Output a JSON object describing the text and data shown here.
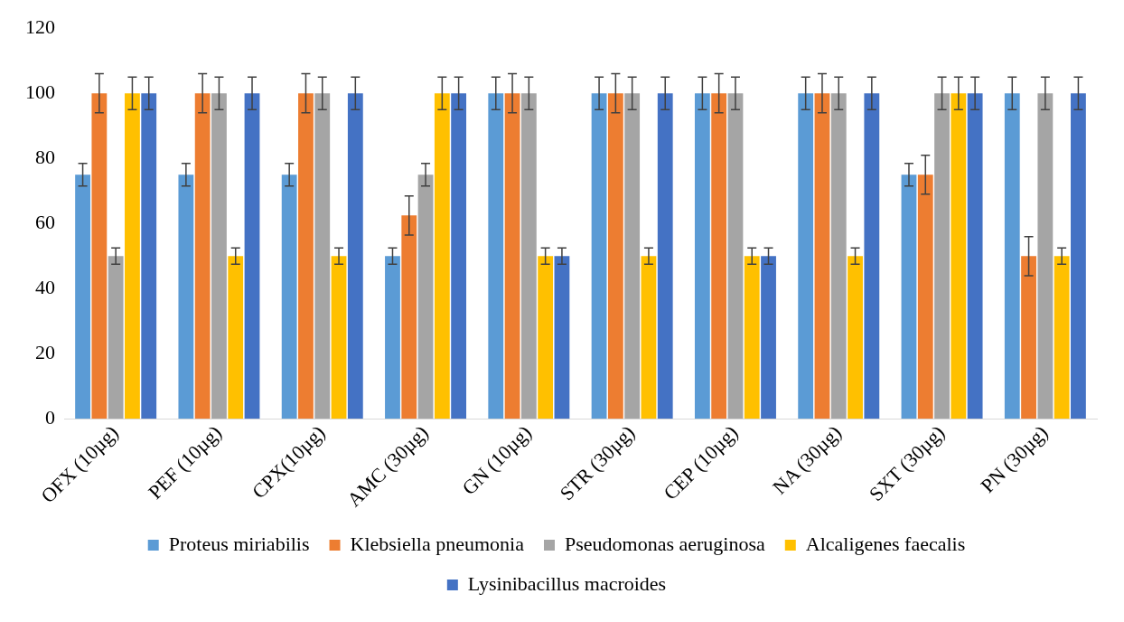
{
  "chart_data": {
    "type": "bar",
    "categories": [
      "OFX (10µg)",
      "PEF (10µg)",
      "CPX(10µg)",
      "AMC (30µg)",
      "GN (10µg)",
      "STR (30µg)",
      "CEP (10µg)",
      "NA (30µg)",
      "SXT (30µg)",
      "PN (30µg)"
    ],
    "series": [
      {
        "name": "Proteus miriabilis",
        "color": "#5b9bd5",
        "values": [
          75,
          75,
          75,
          50,
          100,
          100,
          100,
          100,
          75,
          100
        ],
        "errors": [
          3.5,
          3.5,
          3.5,
          2.5,
          5,
          5,
          5,
          5,
          3.5,
          5
        ]
      },
      {
        "name": "Klebsiella pneumonia",
        "color": "#ed7d31",
        "values": [
          100,
          100,
          100,
          62.5,
          100,
          100,
          100,
          100,
          75,
          50
        ],
        "errors": [
          6,
          6,
          6,
          6,
          6,
          6,
          6,
          6,
          6,
          6
        ]
      },
      {
        "name": "Pseudomonas aeruginosa",
        "color": "#a5a5a5",
        "values": [
          50,
          100,
          100,
          75,
          100,
          100,
          100,
          100,
          100,
          100
        ],
        "errors": [
          2.5,
          5,
          5,
          3.5,
          5,
          5,
          5,
          5,
          5,
          5
        ]
      },
      {
        "name": "Alcaligenes faecalis",
        "color": "#ffc000",
        "values": [
          100,
          50,
          50,
          100,
          50,
          50,
          50,
          50,
          100,
          50
        ],
        "errors": [
          5,
          2.5,
          2.5,
          5,
          2.5,
          2.5,
          2.5,
          2.5,
          5,
          2.5
        ]
      },
      {
        "name": "Lysinibacillus macroides",
        "color": "#4472c4",
        "values": [
          100,
          100,
          100,
          100,
          50,
          100,
          50,
          100,
          100,
          100
        ],
        "errors": [
          5,
          5,
          5,
          5,
          2.5,
          5,
          2.5,
          5,
          5,
          5
        ]
      }
    ],
    "ylim": [
      0,
      120
    ],
    "yticks": [
      0,
      20,
      40,
      60,
      80,
      100,
      120
    ],
    "grid": false,
    "legend": "bottom"
  }
}
